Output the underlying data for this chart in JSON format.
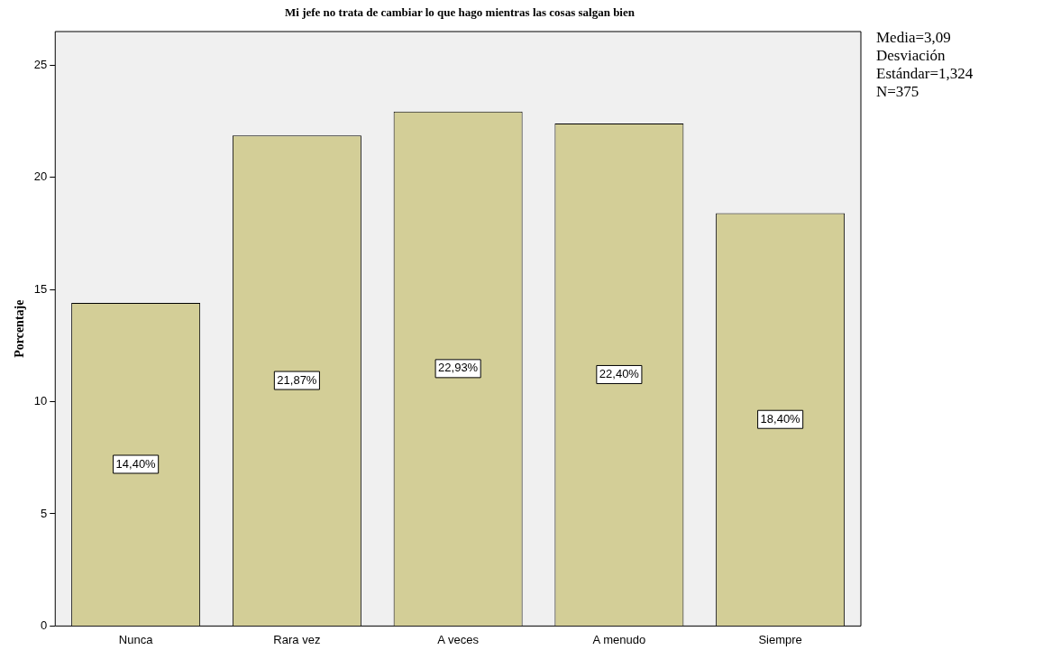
{
  "chart_data": {
    "type": "bar",
    "title": "Mi jefe no trata de cambiar lo que hago mientras las cosas salgan bien",
    "ylabel": "Porcentaje",
    "categories": [
      "Nunca",
      "Rara vez",
      "A veces",
      "A menudo",
      "Siempre"
    ],
    "values": [
      14.4,
      21.87,
      22.93,
      22.4,
      18.4
    ],
    "value_labels": [
      "14,40%",
      "21,87%",
      "22,93%",
      "22,40%",
      "18,40%"
    ],
    "color": "#d3ce97",
    "ylim": [
      0,
      26.5
    ],
    "yticks": [
      0,
      5,
      10,
      15,
      20,
      25
    ],
    "grid": false,
    "legend": false,
    "annotations": [
      "Media=3,09",
      "Desviación Estándar=1,324",
      "N=375"
    ]
  }
}
